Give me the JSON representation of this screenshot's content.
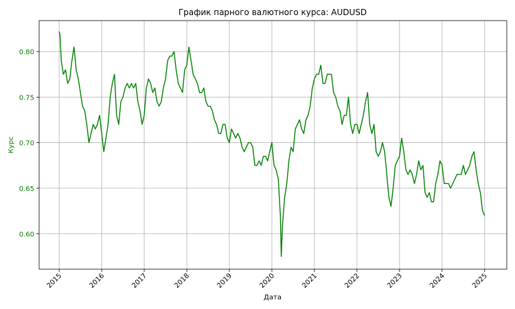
{
  "chart_data": {
    "type": "line",
    "title": "График парного валютного курса: AUDUSD",
    "xlabel": "Дата",
    "ylabel": "Курс",
    "color": "#008000",
    "grid": true,
    "xlim": [
      2014.53,
      2025.52
    ],
    "xticks": [
      2015,
      2016,
      2017,
      2018,
      2019,
      2020,
      2021,
      2022,
      2023,
      2024,
      2025
    ],
    "ylim": [
      0.561,
      0.834
    ],
    "yticks": [
      {
        "value": 0.6,
        "label": "0.60"
      },
      0.65,
      {
        "value": 0.7,
        "label": "0.70"
      },
      0.75,
      {
        "value": 0.8,
        "label": "0.80"
      }
    ],
    "x": [
      2015.0,
      2015.02,
      2015.05,
      2015.1,
      2015.15,
      2015.2,
      2015.25,
      2015.3,
      2015.35,
      2015.4,
      2015.45,
      2015.5,
      2015.55,
      2015.6,
      2015.65,
      2015.7,
      2015.75,
      2015.8,
      2015.85,
      2015.9,
      2015.95,
      2016.0,
      2016.05,
      2016.1,
      2016.15,
      2016.2,
      2016.25,
      2016.3,
      2016.35,
      2016.4,
      2016.45,
      2016.5,
      2016.55,
      2016.6,
      2016.65,
      2016.7,
      2016.75,
      2016.8,
      2016.85,
      2016.9,
      2016.95,
      2017.0,
      2017.05,
      2017.1,
      2017.15,
      2017.2,
      2017.25,
      2017.3,
      2017.35,
      2017.4,
      2017.45,
      2017.5,
      2017.55,
      2017.6,
      2017.65,
      2017.7,
      2017.75,
      2017.8,
      2017.85,
      2017.9,
      2017.95,
      2018.0,
      2018.05,
      2018.1,
      2018.15,
      2018.2,
      2018.25,
      2018.3,
      2018.35,
      2018.4,
      2018.45,
      2018.5,
      2018.55,
      2018.6,
      2018.65,
      2018.7,
      2018.75,
      2018.8,
      2018.85,
      2018.9,
      2018.95,
      2019.0,
      2019.05,
      2019.1,
      2019.15,
      2019.2,
      2019.25,
      2019.3,
      2019.35,
      2019.4,
      2019.45,
      2019.5,
      2019.55,
      2019.6,
      2019.65,
      2019.7,
      2019.75,
      2019.8,
      2019.85,
      2019.9,
      2019.95,
      2020.0,
      2020.05,
      2020.1,
      2020.15,
      2020.2,
      2020.22,
      2020.25,
      2020.3,
      2020.35,
      2020.4,
      2020.45,
      2020.5,
      2020.55,
      2020.6,
      2020.65,
      2020.7,
      2020.75,
      2020.8,
      2020.85,
      2020.9,
      2020.95,
      2021.0,
      2021.05,
      2021.1,
      2021.15,
      2021.2,
      2021.25,
      2021.3,
      2021.35,
      2021.4,
      2021.45,
      2021.5,
      2021.55,
      2021.6,
      2021.65,
      2021.7,
      2021.75,
      2021.8,
      2021.85,
      2021.9,
      2021.95,
      2022.0,
      2022.05,
      2022.1,
      2022.15,
      2022.2,
      2022.25,
      2022.3,
      2022.35,
      2022.4,
      2022.45,
      2022.5,
      2022.55,
      2022.6,
      2022.65,
      2022.7,
      2022.75,
      2022.8,
      2022.85,
      2022.9,
      2022.95,
      2023.0,
      2023.05,
      2023.1,
      2023.15,
      2023.2,
      2023.25,
      2023.3,
      2023.35,
      2023.4,
      2023.45,
      2023.5,
      2023.55,
      2023.6,
      2023.65,
      2023.7,
      2023.75,
      2023.8,
      2023.85,
      2023.9,
      2023.95,
      2024.0,
      2024.05,
      2024.1,
      2024.15,
      2024.2,
      2024.25,
      2024.3,
      2024.35,
      2024.4,
      2024.45,
      2024.5,
      2024.55,
      2024.6,
      2024.65,
      2024.7,
      2024.75,
      2024.8,
      2024.85,
      2024.9,
      2024.95,
      2025.0
    ],
    "values": [
      0.822,
      0.818,
      0.79,
      0.775,
      0.78,
      0.765,
      0.77,
      0.79,
      0.805,
      0.78,
      0.77,
      0.755,
      0.74,
      0.735,
      0.72,
      0.7,
      0.71,
      0.72,
      0.715,
      0.72,
      0.73,
      0.71,
      0.69,
      0.705,
      0.72,
      0.75,
      0.765,
      0.775,
      0.73,
      0.72,
      0.745,
      0.75,
      0.76,
      0.765,
      0.76,
      0.765,
      0.76,
      0.765,
      0.745,
      0.735,
      0.72,
      0.73,
      0.76,
      0.77,
      0.765,
      0.755,
      0.76,
      0.745,
      0.74,
      0.745,
      0.76,
      0.77,
      0.79,
      0.795,
      0.795,
      0.8,
      0.78,
      0.765,
      0.76,
      0.755,
      0.78,
      0.785,
      0.805,
      0.79,
      0.775,
      0.77,
      0.765,
      0.755,
      0.755,
      0.76,
      0.745,
      0.74,
      0.74,
      0.735,
      0.725,
      0.72,
      0.71,
      0.71,
      0.72,
      0.72,
      0.705,
      0.7,
      0.715,
      0.71,
      0.705,
      0.71,
      0.705,
      0.695,
      0.69,
      0.695,
      0.7,
      0.7,
      0.695,
      0.675,
      0.675,
      0.68,
      0.675,
      0.685,
      0.685,
      0.68,
      0.69,
      0.7,
      0.675,
      0.67,
      0.66,
      0.62,
      0.575,
      0.61,
      0.64,
      0.655,
      0.68,
      0.695,
      0.69,
      0.715,
      0.72,
      0.725,
      0.715,
      0.71,
      0.725,
      0.73,
      0.74,
      0.76,
      0.77,
      0.775,
      0.775,
      0.785,
      0.765,
      0.765,
      0.775,
      0.775,
      0.775,
      0.755,
      0.75,
      0.74,
      0.735,
      0.72,
      0.73,
      0.73,
      0.75,
      0.72,
      0.71,
      0.72,
      0.72,
      0.71,
      0.72,
      0.73,
      0.745,
      0.755,
      0.72,
      0.71,
      0.72,
      0.69,
      0.685,
      0.69,
      0.7,
      0.69,
      0.665,
      0.64,
      0.63,
      0.65,
      0.675,
      0.68,
      0.685,
      0.705,
      0.69,
      0.67,
      0.665,
      0.67,
      0.665,
      0.655,
      0.665,
      0.68,
      0.67,
      0.675,
      0.645,
      0.64,
      0.645,
      0.635,
      0.635,
      0.655,
      0.665,
      0.68,
      0.675,
      0.655,
      0.655,
      0.655,
      0.65,
      0.655,
      0.66,
      0.665,
      0.665,
      0.665,
      0.675,
      0.665,
      0.67,
      0.675,
      0.685,
      0.69,
      0.67,
      0.655,
      0.645,
      0.625,
      0.62
    ]
  }
}
